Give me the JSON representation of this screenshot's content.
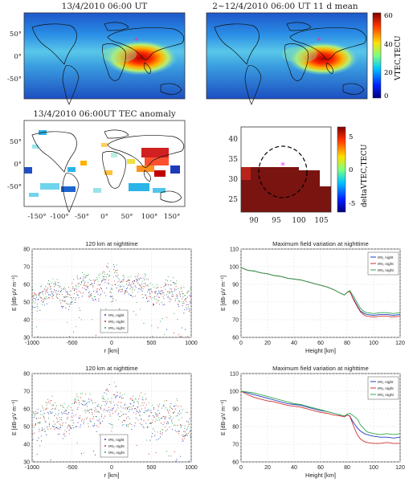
{
  "maps": {
    "panel1_title": "13/4/2010 06:00 UT",
    "panel2_title": "2~12/4/2010 06:00 UT 11 d mean",
    "panel3_title": "13/4/2010 06:00UT TEC anomaly",
    "colorbar_top": {
      "label": "VTEC,TECU",
      "ticks": [
        "0",
        "20",
        "40",
        "60"
      ]
    },
    "colorbar_zoom": {
      "label": "deltaVTEC,TECU",
      "ticks": [
        "-5",
        "0",
        "5"
      ]
    },
    "lat_ticks": [
      "50°",
      "0°",
      "-50°"
    ],
    "lon_ticks": [
      "-150°",
      "-100°",
      "-50°",
      "0°",
      "50°",
      "100°",
      "150°"
    ],
    "zoom_x_ticks": [
      "90",
      "95",
      "100",
      "105"
    ],
    "zoom_y_ticks": [
      "25",
      "30",
      "35",
      "40"
    ],
    "epicenter_marker": "*"
  },
  "chart_data": [
    {
      "type": "scatter",
      "title": "120 km at nighttime",
      "xlabel": "r [km]",
      "ylabel": "E [dB-μV m⁻¹]",
      "xlim": [
        -1000,
        1000
      ],
      "ylim": [
        30,
        80
      ],
      "xticks": [
        "-1000",
        "-500",
        "0",
        "500",
        "1000"
      ],
      "yticks": [
        "30",
        "40",
        "50",
        "60",
        "70",
        "80"
      ],
      "legend": [
        "IRI₁ night",
        "IRI₂ night",
        "IRI₃ night"
      ],
      "legend_position": "bottom-center",
      "series_colors": [
        "#1f3fbf",
        "#d03030",
        "#2fa84a"
      ]
    },
    {
      "type": "line",
      "title": "Maximum field variation at nighttime",
      "xlabel": "Height [km]",
      "ylabel": "E [dB-μV m⁻¹]",
      "xlim": [
        0,
        120
      ],
      "ylim": [
        60,
        110
      ],
      "xticks": [
        "0",
        "20",
        "40",
        "60",
        "80",
        "100",
        "120"
      ],
      "yticks": [
        "60",
        "70",
        "80",
        "90",
        "100",
        "110"
      ],
      "legend": [
        "IRI₁ night",
        "IRI₂ night",
        "IRI₃ night"
      ],
      "legend_position": "top-right",
      "x": [
        0,
        5,
        10,
        15,
        20,
        25,
        30,
        35,
        40,
        45,
        50,
        55,
        60,
        65,
        70,
        75,
        78,
        80,
        82,
        85,
        88,
        90,
        93,
        95,
        100,
        105,
        110,
        115,
        120
      ],
      "series": [
        {
          "name": "IRI₁ night",
          "color": "#1f3fbf",
          "values": [
            99.5,
            98,
            97.5,
            96.5,
            96,
            95,
            94.5,
            93.5,
            93,
            92.5,
            91.5,
            90.5,
            89.5,
            88.5,
            87,
            85,
            84,
            85.5,
            86,
            81.5,
            77.5,
            75,
            73.5,
            73,
            72.5,
            73,
            73,
            72.5,
            73
          ]
        },
        {
          "name": "IRI₂ night",
          "color": "#d03030",
          "values": [
            99.5,
            98,
            97.5,
            96.5,
            96,
            95,
            94.5,
            93.5,
            93,
            92.5,
            91.5,
            90.5,
            89.5,
            88.5,
            87,
            85,
            84,
            85.5,
            86,
            81,
            77,
            74.5,
            72.5,
            72,
            71.5,
            72,
            72,
            71.5,
            72
          ]
        },
        {
          "name": "IRI₃ night",
          "color": "#2fa84a",
          "values": [
            99.5,
            98,
            97.5,
            96.5,
            96,
            95,
            94.5,
            93.5,
            93,
            92.5,
            91.5,
            90.5,
            89.5,
            88.5,
            87,
            85,
            84,
            85.5,
            86.5,
            83,
            79,
            76.5,
            74.5,
            74,
            73.5,
            74,
            74,
            73.5,
            74
          ]
        }
      ]
    },
    {
      "type": "scatter",
      "title": "120 km at nighttime",
      "xlabel": "r [km]",
      "ylabel": "E [dB-μV m⁻¹]",
      "xlim": [
        -1000,
        1000
      ],
      "ylim": [
        30,
        80
      ],
      "xticks": [
        "-1000",
        "-500",
        "0",
        "500",
        "1000"
      ],
      "yticks": [
        "30",
        "40",
        "50",
        "60",
        "70",
        "80"
      ],
      "legend": [
        "IRI₁ night",
        "IRI₂ night",
        "IRI₃ night"
      ],
      "legend_position": "bottom-center",
      "series_colors": [
        "#1f3fbf",
        "#d03030",
        "#2fa84a"
      ]
    },
    {
      "type": "line",
      "title": "Maximum field variation at nighttime",
      "xlabel": "Height [km]",
      "ylabel": "E [dB-μV m⁻¹]",
      "xlim": [
        0,
        120
      ],
      "ylim": [
        60,
        110
      ],
      "xticks": [
        "0",
        "20",
        "40",
        "60",
        "80",
        "100",
        "120"
      ],
      "yticks": [
        "60",
        "70",
        "80",
        "90",
        "100",
        "110"
      ],
      "legend": [
        "IRI₁ night",
        "IRI₂ night",
        "IRI₃ night"
      ],
      "legend_position": "top-right",
      "x": [
        0,
        5,
        10,
        15,
        20,
        25,
        30,
        35,
        40,
        45,
        50,
        55,
        60,
        65,
        70,
        75,
        78,
        80,
        82,
        85,
        88,
        90,
        93,
        95,
        100,
        105,
        110,
        115,
        120
      ],
      "series": [
        {
          "name": "IRI₁ night",
          "color": "#1f3fbf",
          "values": [
            100,
            99,
            98,
            97,
            96,
            95,
            94,
            93,
            92.5,
            92,
            91,
            90,
            89,
            88.5,
            87.5,
            86.5,
            86,
            86.5,
            86,
            82,
            79,
            77.5,
            76,
            75.5,
            74.5,
            74,
            74,
            73.5,
            74
          ]
        },
        {
          "name": "IRI₂ night",
          "color": "#d03030",
          "values": [
            100,
            98,
            96.5,
            95.5,
            94.5,
            94,
            93,
            92,
            91.5,
            91,
            90,
            89,
            88,
            87.5,
            86.5,
            86,
            85.5,
            86.5,
            86,
            80,
            75,
            73,
            71.5,
            71,
            70.5,
            70.5,
            71,
            70.5,
            70.5
          ]
        },
        {
          "name": "IRI₃ night",
          "color": "#2fa84a",
          "values": [
            100,
            99.5,
            99,
            98,
            97,
            96,
            95,
            94,
            93,
            92.5,
            91.5,
            90.5,
            89.5,
            88.5,
            87.5,
            86.5,
            86,
            87,
            87.5,
            86,
            84,
            81,
            78.5,
            77,
            76,
            75.5,
            76,
            75.5,
            76
          ]
        }
      ]
    }
  ]
}
